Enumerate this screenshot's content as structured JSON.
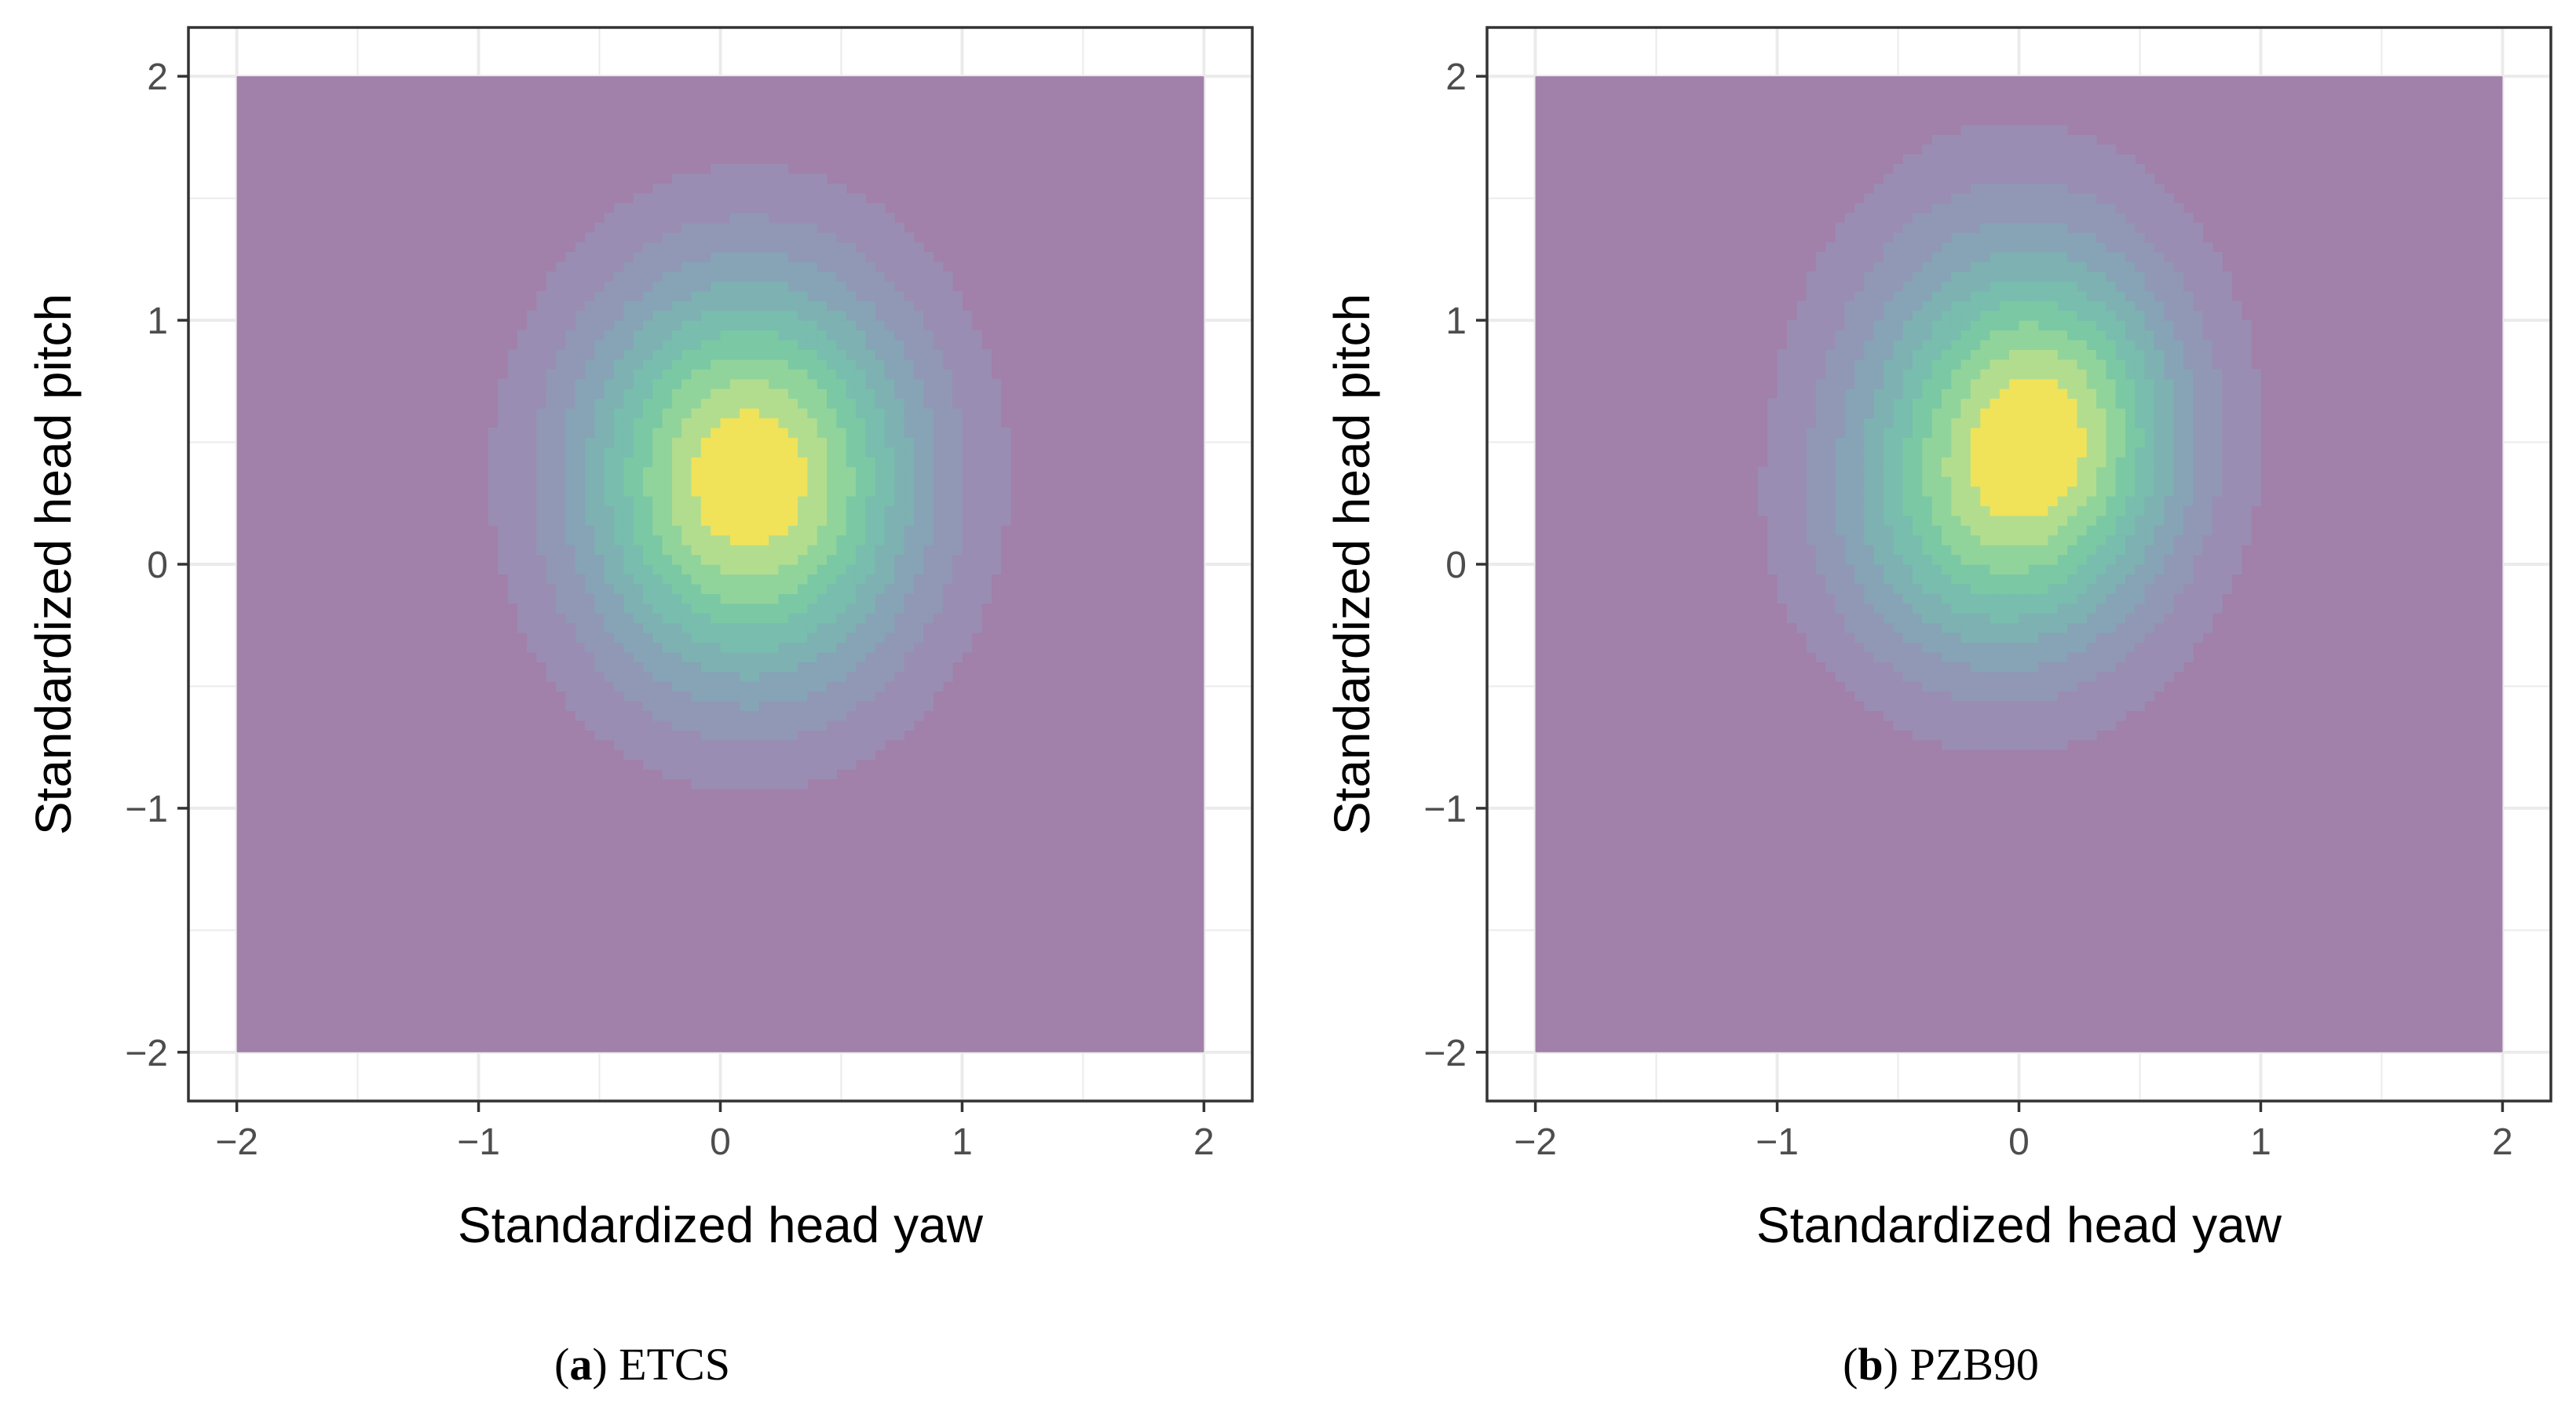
{
  "chart_data": [
    {
      "type": "contour",
      "panel_label": "a",
      "caption": "ETCS",
      "xlabel": "Standardized head yaw",
      "ylabel": "Standardized head pitch",
      "xlim": [
        -2.2,
        2.2
      ],
      "ylim": [
        -2.2,
        2.2
      ],
      "xticks": [
        -2,
        -1,
        0,
        1,
        2
      ],
      "yticks": [
        -2,
        -1,
        0,
        1,
        2
      ],
      "xtick_labels": [
        "−2",
        "−1",
        "0",
        "1",
        "2"
      ],
      "ytick_labels": [
        "−2",
        "−1",
        "0",
        "1",
        "2"
      ],
      "grid": true,
      "data_extent": {
        "x": [
          -2,
          2
        ],
        "y": [
          -2,
          2
        ]
      },
      "density_peak": {
        "x": 0.12,
        "y": 0.35
      },
      "density_peaks": [
        {
          "x": 0.12,
          "y": 0.35,
          "sx": 0.5,
          "sy": 0.6,
          "w": 1.0
        }
      ],
      "levels": [
        0.1,
        0.2,
        0.3,
        0.4,
        0.5,
        0.6,
        0.7,
        0.8,
        0.9
      ]
    },
    {
      "type": "contour",
      "panel_label": "b",
      "caption": "PZB90",
      "xlabel": "Standardized head yaw",
      "ylabel": "Standardized head pitch",
      "xlim": [
        -2.2,
        2.2
      ],
      "ylim": [
        -2.2,
        2.2
      ],
      "xticks": [
        -2,
        -1,
        0,
        1,
        2
      ],
      "yticks": [
        -2,
        -1,
        0,
        1,
        2
      ],
      "xtick_labels": [
        "−2",
        "−1",
        "0",
        "1",
        "2"
      ],
      "ytick_labels": [
        "−2",
        "−1",
        "0",
        "1",
        "2"
      ],
      "grid": true,
      "data_extent": {
        "x": [
          -2,
          2
        ],
        "y": [
          -2,
          2
        ]
      },
      "density_peak": {
        "x": 0.0,
        "y": 0.5
      },
      "density_peaks": [
        {
          "x": -0.02,
          "y": 0.55,
          "sx": 0.5,
          "sy": 0.65,
          "w": 1.0
        },
        {
          "x": 0.18,
          "y": 0.6,
          "sx": 0.35,
          "sy": 0.4,
          "w": 0.45
        },
        {
          "x": -0.2,
          "y": 0.1,
          "sx": 0.45,
          "sy": 0.4,
          "w": 0.35
        }
      ],
      "levels": [
        0.1,
        0.2,
        0.3,
        0.4,
        0.5,
        0.6,
        0.7,
        0.8,
        0.9
      ]
    }
  ],
  "colors": {
    "background_fill": "#a180aa",
    "level_fills": [
      "#a180aa",
      "#9a8db3",
      "#9098b5",
      "#86a4b5",
      "#7eb1b2",
      "#78bdad",
      "#7bc8a5",
      "#91d49b",
      "#b3dd8e",
      "#f0e35a"
    ],
    "panel_border": "#333333",
    "grid": "#ebebeb"
  }
}
